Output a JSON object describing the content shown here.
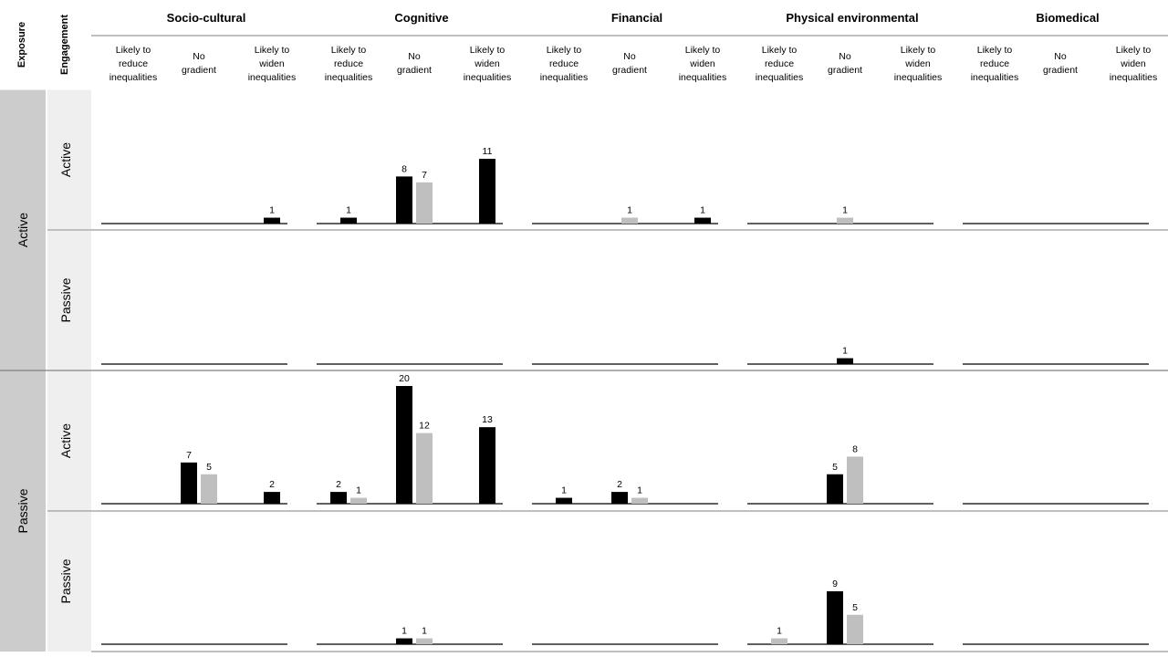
{
  "chart_data": {
    "type": "bar",
    "headers": {
      "exposure": "Exposure",
      "engagement": "Engagement"
    },
    "categories": [
      "Socio-cultural",
      "Cognitive",
      "Financial",
      "Physical environmental",
      "Biomedical"
    ],
    "gradient_columns": [
      [
        "Likely to",
        "reduce",
        "inequalities"
      ],
      [
        "No",
        "gradient"
      ],
      [
        "Likely to",
        "widen",
        "inequalities"
      ]
    ],
    "exposure_labels": [
      "Active",
      "Passive"
    ],
    "engagement_labels": [
      "Active",
      "Passive"
    ],
    "series_colors": {
      "black": "#000000",
      "grey": "#bfbfbf"
    },
    "rows": [
      {
        "exposure": "Active",
        "engagement": "Active",
        "bars": [
          {
            "category": "Socio-cultural",
            "column": 2,
            "color": "black",
            "value": 1
          },
          {
            "category": "Cognitive",
            "column": 0,
            "color": "black",
            "value": 1
          },
          {
            "category": "Cognitive",
            "column": 1,
            "color": "black",
            "value": 8
          },
          {
            "category": "Cognitive",
            "column": 1,
            "color": "grey",
            "value": 7
          },
          {
            "category": "Cognitive",
            "column": 2,
            "color": "black",
            "value": 11
          },
          {
            "category": "Financial",
            "column": 1,
            "color": "grey",
            "value": 1
          },
          {
            "category": "Financial",
            "column": 2,
            "color": "black",
            "value": 1
          },
          {
            "category": "Physical environmental",
            "column": 1,
            "color": "grey",
            "value": 1
          }
        ]
      },
      {
        "exposure": "Active",
        "engagement": "Passive",
        "bars": [
          {
            "category": "Physical environmental",
            "column": 1,
            "color": "black",
            "value": 1
          }
        ]
      },
      {
        "exposure": "Passive",
        "engagement": "Active",
        "bars": [
          {
            "category": "Socio-cultural",
            "column": 1,
            "color": "black",
            "value": 7
          },
          {
            "category": "Socio-cultural",
            "column": 1,
            "color": "grey",
            "value": 5
          },
          {
            "category": "Socio-cultural",
            "column": 2,
            "color": "black",
            "value": 2
          },
          {
            "category": "Cognitive",
            "column": 0,
            "color": "black",
            "value": 2
          },
          {
            "category": "Cognitive",
            "column": 0,
            "color": "grey",
            "value": 1
          },
          {
            "category": "Cognitive",
            "column": 1,
            "color": "black",
            "value": 20
          },
          {
            "category": "Cognitive",
            "column": 1,
            "color": "grey",
            "value": 12
          },
          {
            "category": "Cognitive",
            "column": 2,
            "color": "black",
            "value": 13
          },
          {
            "category": "Financial",
            "column": 0,
            "color": "black",
            "value": 1
          },
          {
            "category": "Financial",
            "column": 1,
            "color": "black",
            "value": 2
          },
          {
            "category": "Financial",
            "column": 1,
            "color": "grey",
            "value": 1
          },
          {
            "category": "Physical environmental",
            "column": 1,
            "color": "black",
            "value": 5
          },
          {
            "category": "Physical environmental",
            "column": 1,
            "color": "grey",
            "value": 8
          }
        ]
      },
      {
        "exposure": "Passive",
        "engagement": "Passive",
        "bars": [
          {
            "category": "Cognitive",
            "column": 1,
            "color": "black",
            "value": 1
          },
          {
            "category": "Cognitive",
            "column": 1,
            "color": "grey",
            "value": 1
          },
          {
            "category": "Physical environmental",
            "column": 0,
            "color": "grey",
            "value": 1
          },
          {
            "category": "Physical environmental",
            "column": 1,
            "color": "black",
            "value": 9
          },
          {
            "category": "Physical environmental",
            "column": 1,
            "color": "grey",
            "value": 5
          }
        ]
      }
    ]
  }
}
